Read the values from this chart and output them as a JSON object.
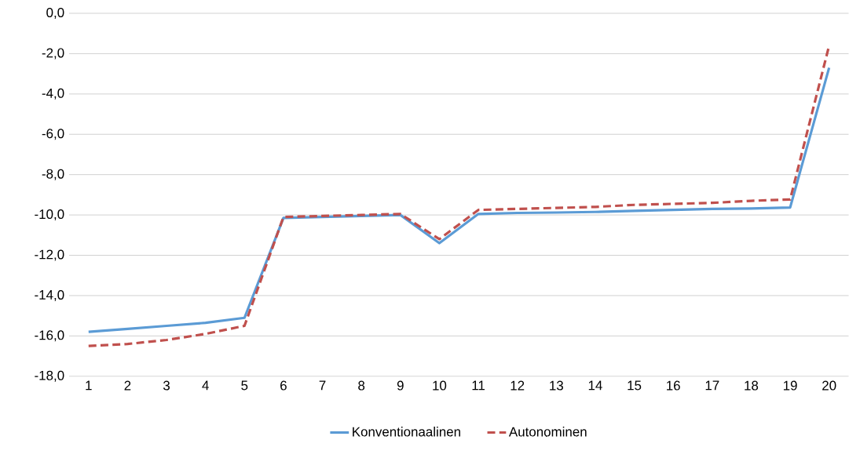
{
  "chart_data": {
    "type": "line",
    "categories": [
      "1",
      "2",
      "3",
      "4",
      "5",
      "6",
      "7",
      "8",
      "9",
      "10",
      "11",
      "12",
      "13",
      "14",
      "15",
      "16",
      "17",
      "18",
      "19",
      "20"
    ],
    "series": [
      {
        "name": "Konventionaalinen",
        "color": "#5b9bd5",
        "line_style": "solid",
        "values": [
          -15.8,
          -15.65,
          -15.5,
          -15.35,
          -15.1,
          -10.15,
          -10.1,
          -10.05,
          -10.0,
          -11.4,
          -9.95,
          -9.9,
          -9.88,
          -9.85,
          -9.8,
          -9.75,
          -9.7,
          -9.68,
          -9.63,
          -2.7
        ]
      },
      {
        "name": "Autonominen",
        "color": "#c0504d",
        "line_style": "dashed",
        "values": [
          -16.5,
          -16.4,
          -16.2,
          -15.9,
          -15.5,
          -10.1,
          -10.05,
          -10.0,
          -9.95,
          -11.2,
          -9.75,
          -9.7,
          -9.65,
          -9.6,
          -9.5,
          -9.45,
          -9.4,
          -9.3,
          -9.23,
          -1.6
        ]
      }
    ],
    "ylim": [
      -18,
      0
    ],
    "yticks": [
      {
        "value": -18,
        "label": "-18,0"
      },
      {
        "value": -16,
        "label": "-16,0"
      },
      {
        "value": -14,
        "label": "-14,0"
      },
      {
        "value": -12,
        "label": "-12,0"
      },
      {
        "value": -10,
        "label": "-10,0"
      },
      {
        "value": -8,
        "label": "-8,0"
      },
      {
        "value": -6,
        "label": "-6,0"
      },
      {
        "value": -4,
        "label": "-4,0"
      },
      {
        "value": -2,
        "label": "-2,0"
      },
      {
        "value": 0,
        "label": "0,0"
      }
    ],
    "grid": "y",
    "legend": "bottom",
    "marker": "none"
  }
}
